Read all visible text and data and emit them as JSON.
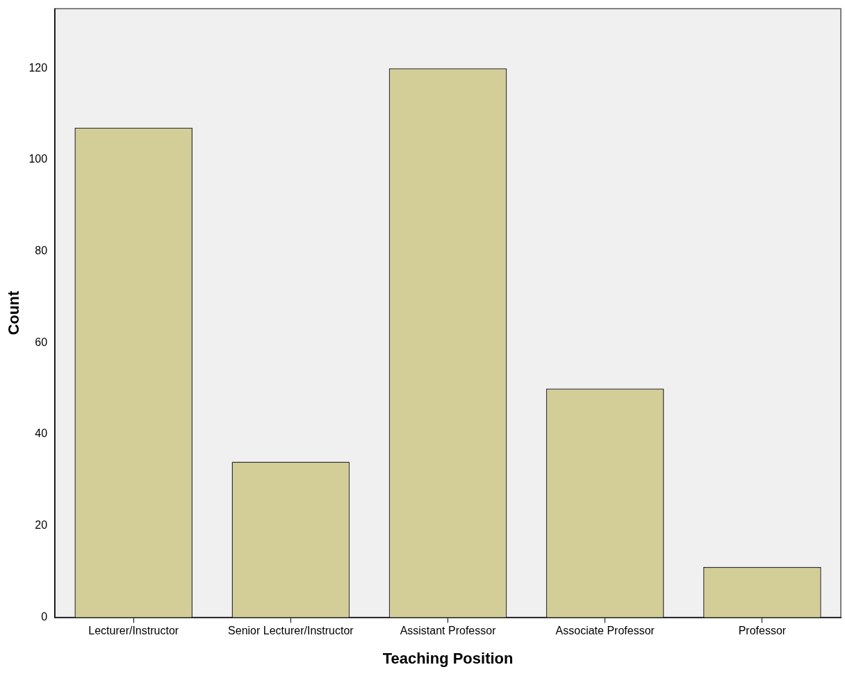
{
  "chart_data": {
    "type": "bar",
    "xlabel": "Teaching Position",
    "ylabel": "Count",
    "categories": [
      "Lecturer/Instructor",
      "Senior Lecturer/Instructor",
      "Assistant Professor",
      "Associate Professor",
      "Professor"
    ],
    "values": [
      107,
      34,
      120,
      50,
      11
    ],
    "color": "#d3ce97",
    "ylim": [
      0,
      133
    ],
    "yticks": [
      0,
      20,
      40,
      60,
      80,
      100,
      120
    ],
    "grid": false,
    "legend": false
  }
}
